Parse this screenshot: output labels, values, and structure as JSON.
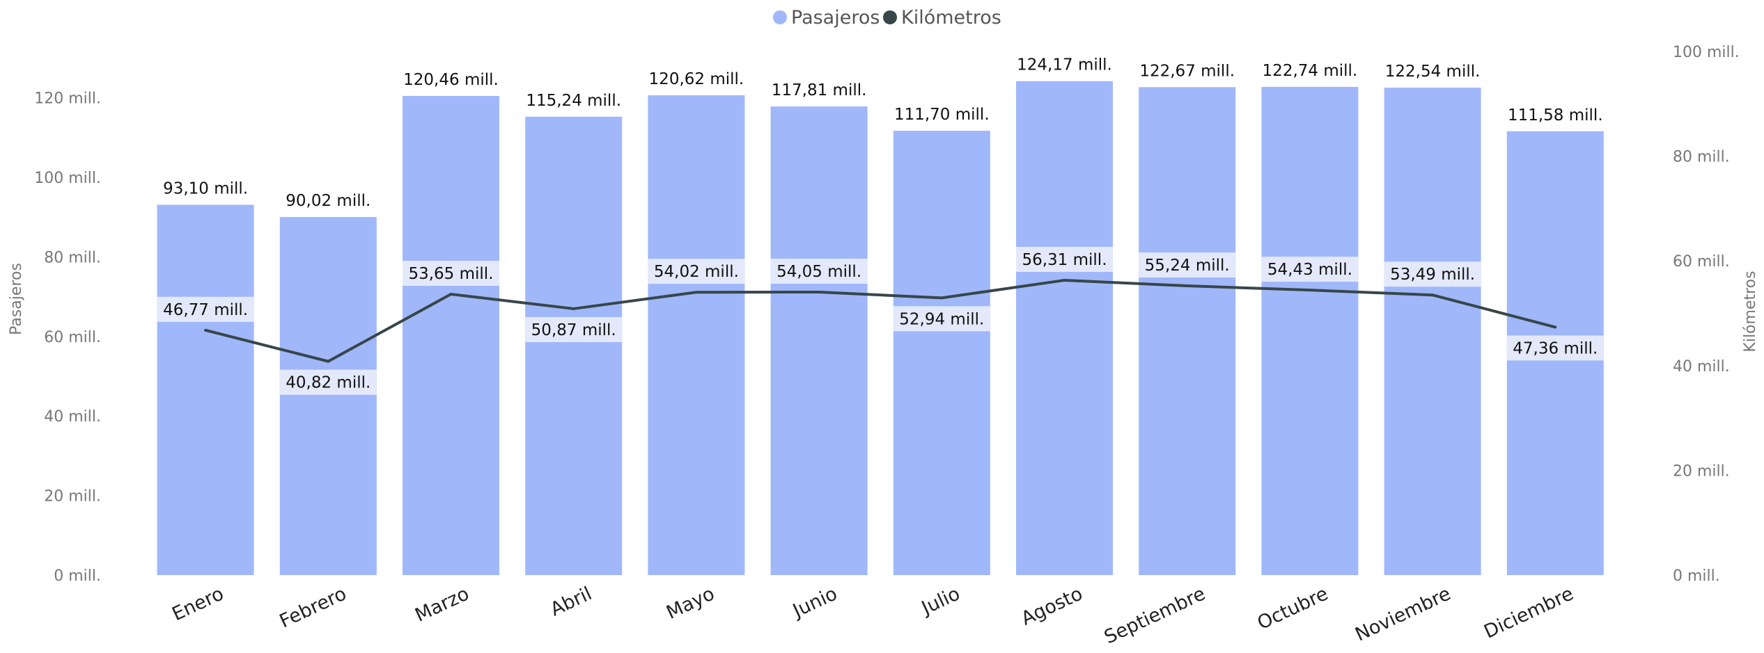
{
  "chart_data": {
    "type": "bar",
    "title": "",
    "categories": [
      "Enero",
      "Febrero",
      "Marzo",
      "Abril",
      "Mayo",
      "Junio",
      "Julio",
      "Agosto",
      "Septiembre",
      "Octubre",
      "Noviembre",
      "Diciembre"
    ],
    "series": [
      {
        "name": "Pasajeros",
        "kind": "bar",
        "axis": "left",
        "color": "#A0B7FA",
        "values": [
          93.1,
          90.02,
          120.46,
          115.24,
          120.62,
          117.81,
          111.7,
          124.17,
          122.67,
          122.74,
          122.54,
          111.58
        ],
        "labels": [
          "93,10 mill.",
          "90,02 mill.",
          "120,46 mill.",
          "115,24 mill.",
          "120,62 mill.",
          "117,81 mill.",
          "111,70 mill.",
          "124,17 mill.",
          "122,67 mill.",
          "122,74 mill.",
          "122,54 mill.",
          "111,58 mill."
        ]
      },
      {
        "name": "Kilómetros",
        "kind": "line",
        "axis": "right",
        "color": "#374649",
        "values": [
          46.77,
          40.82,
          53.65,
          50.87,
          54.02,
          54.05,
          52.94,
          56.31,
          55.24,
          54.43,
          53.49,
          47.36
        ],
        "labels": [
          "46,77 mill.",
          "40,82 mill.",
          "53,65 mill.",
          "50,87 mill.",
          "54,02 mill.",
          "54,05 mill.",
          "52,94 mill.",
          "56,31 mill.",
          "55,24 mill.",
          "54,43 mill.",
          "53,49 mill.",
          "47,36 mill."
        ]
      }
    ],
    "y_left": {
      "label": "Pasajeros",
      "range": [
        0,
        132
      ],
      "ticks": [
        0,
        20,
        40,
        60,
        80,
        100,
        120
      ],
      "tick_labels": [
        "0 mill.",
        "20 mill.",
        "40 mill.",
        "60 mill.",
        "80 mill.",
        "100 mill.",
        "120 mill."
      ]
    },
    "y_right": {
      "label": "Kilómetros",
      "range": [
        0,
        100
      ],
      "ticks": [
        0,
        20,
        40,
        60,
        80,
        100
      ],
      "tick_labels": [
        "0 mill.",
        "20 mill.",
        "40 mill.",
        "60 mill.",
        "80 mill.",
        "100 mill."
      ]
    },
    "grid": false,
    "legend_position": "top-center",
    "label_background": "#E3E9FA"
  }
}
